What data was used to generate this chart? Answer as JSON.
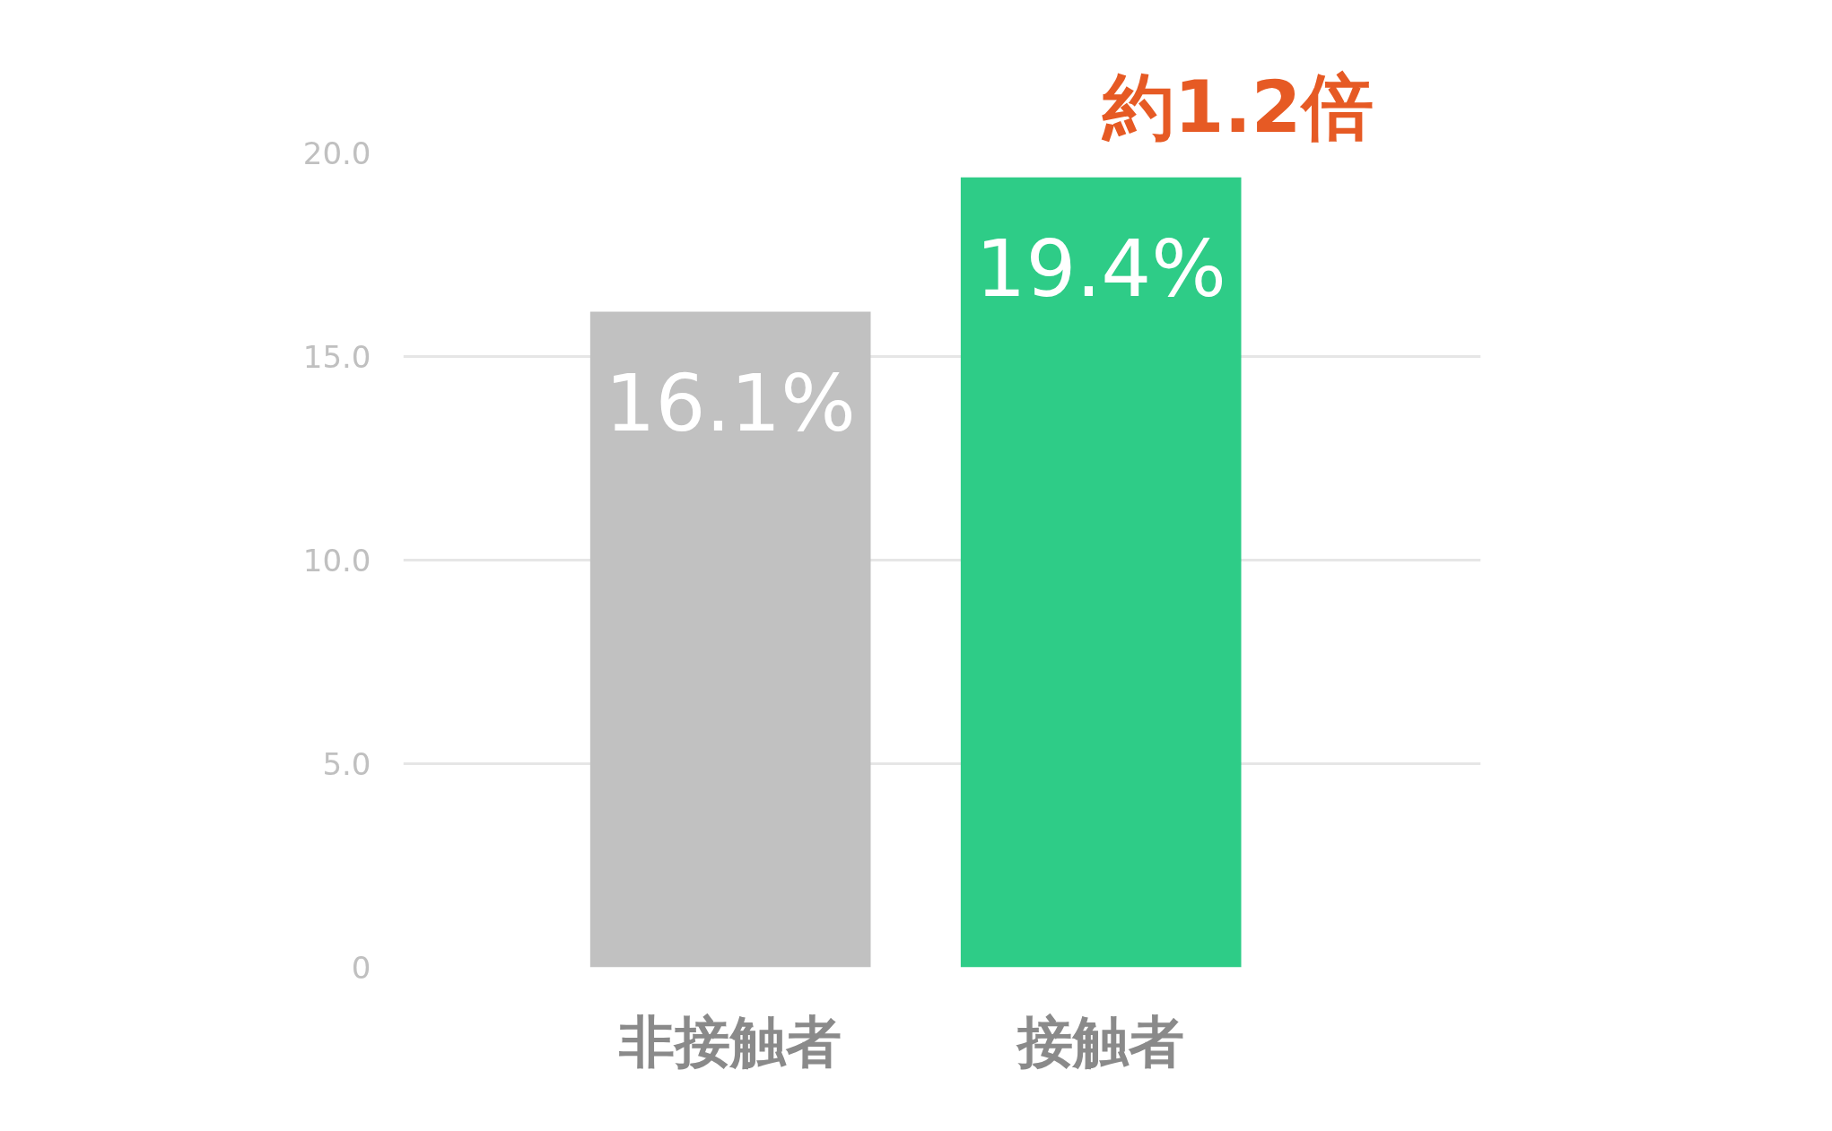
{
  "chart_data": {
    "type": "bar",
    "categories": [
      "非接触者",
      "接触者"
    ],
    "values": [
      16.1,
      19.4
    ],
    "colors": [
      "#c1c1c1",
      "#2ecc87"
    ],
    "value_labels": [
      "16.1%",
      "19.4%"
    ],
    "ylim": [
      0,
      20
    ],
    "yticks": [
      {
        "value": 0,
        "label": "0"
      },
      {
        "value": 5,
        "label": "5.0"
      },
      {
        "value": 10,
        "label": "10.0"
      },
      {
        "value": 15,
        "label": "15.0"
      },
      {
        "value": 20,
        "label": "20.0"
      }
    ],
    "grid": "y",
    "annotations": [
      "約1.2倍"
    ]
  }
}
